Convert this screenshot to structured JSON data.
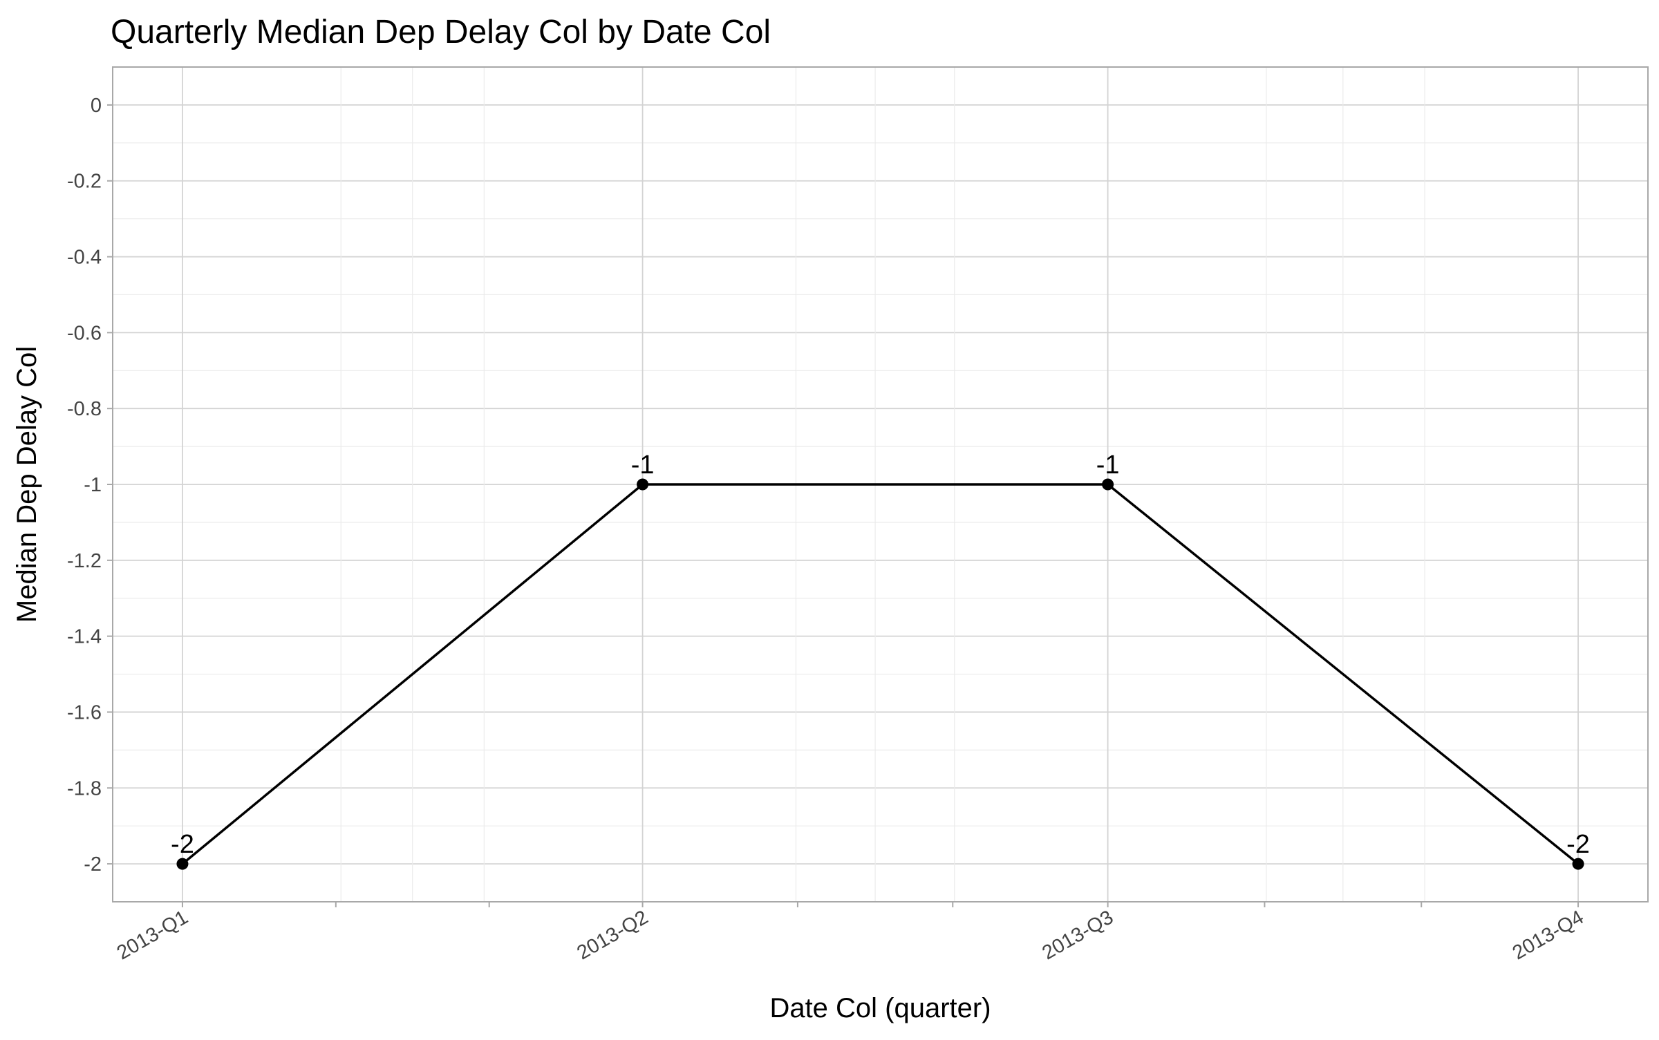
{
  "chart_data": {
    "type": "line",
    "title": "Quarterly Median Dep Delay Col by Date Col",
    "xlabel": "Date Col (quarter)",
    "ylabel": "Median Dep Delay Col",
    "categories": [
      "2013-Q1",
      "2013-Q2",
      "2013-Q3",
      "2013-Q4"
    ],
    "x_dates": [
      "2013-01-01",
      "2013-04-01",
      "2013-07-01",
      "2013-10-01"
    ],
    "series": [
      {
        "values": [
          -2,
          -1,
          -1,
          -2
        ]
      }
    ],
    "data_labels": [
      "-2",
      "-1",
      "-1",
      "-2"
    ],
    "ylim": [
      -2.1,
      0.1
    ],
    "y_ticks": [
      0,
      -0.2,
      -0.4,
      -0.6,
      -0.8,
      -1,
      -1.2,
      -1.4,
      -1.6,
      -1.8,
      -2
    ],
    "y_tick_labels": [
      "0",
      "-0.2",
      "-0.4",
      "-0.6",
      "-0.8",
      "-1",
      "-1.2",
      "-1.4",
      "-1.6",
      "-1.8",
      "-2"
    ],
    "grid": true,
    "legend": "none",
    "colors": {
      "line": "#000000",
      "grid_major": "#d3d3d3",
      "grid_minor": "#ebebeb",
      "border": "#a8a8a8"
    }
  }
}
